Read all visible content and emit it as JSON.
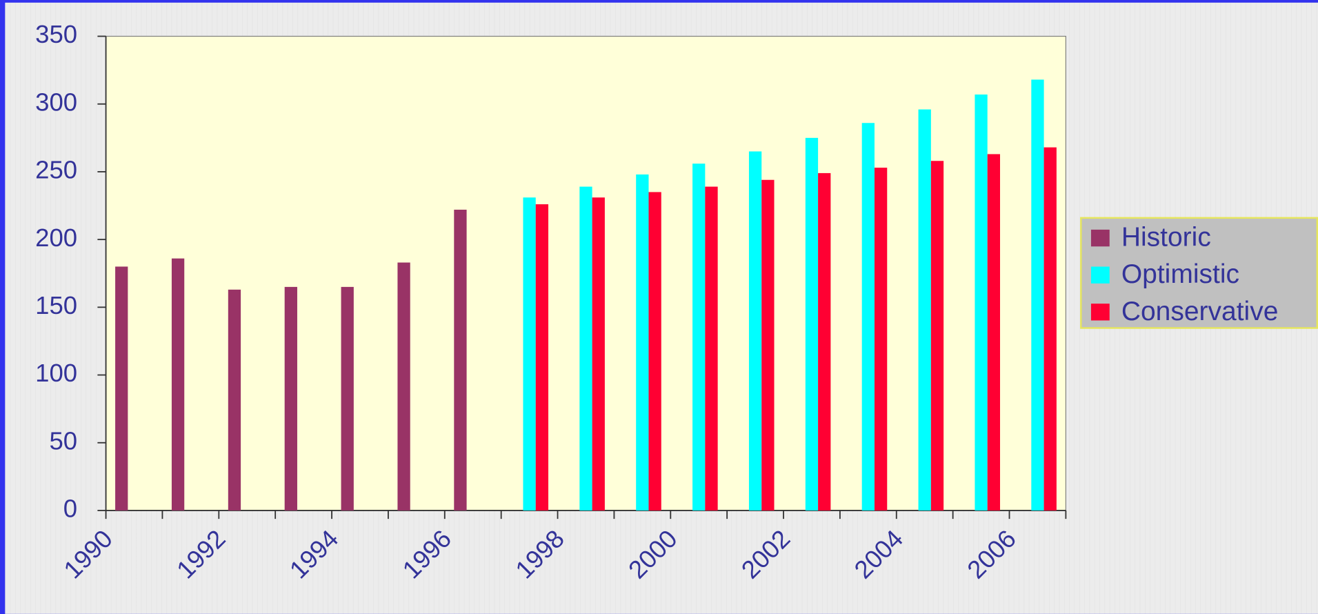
{
  "chart_data": {
    "type": "bar",
    "categories": [
      "1990",
      null,
      "1992",
      null,
      "1994",
      null,
      "1996",
      null,
      "1998",
      null,
      "2000",
      null,
      "2002",
      null,
      "2004",
      null,
      "2006"
    ],
    "series": [
      {
        "name": "Historic",
        "color": "#993366",
        "values": [
          180,
          186,
          163,
          165,
          165,
          183,
          222,
          null,
          null,
          null,
          null,
          null,
          null,
          null,
          null,
          null,
          null
        ]
      },
      {
        "name": "Optimistic",
        "color": "#00ffff",
        "values": [
          null,
          null,
          null,
          null,
          null,
          null,
          null,
          231,
          239,
          248,
          256,
          265,
          275,
          286,
          296,
          307,
          318
        ]
      },
      {
        "name": "Conservative",
        "color": "#ff0033",
        "values": [
          null,
          null,
          null,
          null,
          null,
          null,
          null,
          226,
          231,
          235,
          239,
          244,
          249,
          253,
          258,
          263,
          268
        ]
      }
    ],
    "ylim": [
      0,
      350
    ],
    "yticks": [
      0,
      50,
      100,
      150,
      200,
      250,
      300,
      350
    ],
    "legend": "right"
  }
}
